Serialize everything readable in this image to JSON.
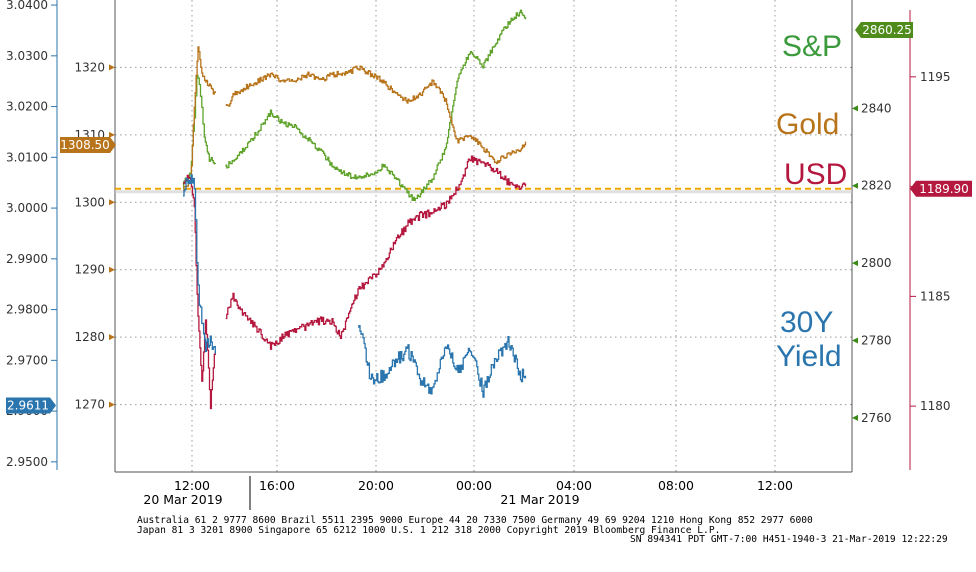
{
  "chart_data": {
    "type": "line",
    "x_ticks": [
      "12:00",
      "16:00",
      "20:00",
      "00:00",
      "04:00",
      "08:00",
      "12:00"
    ],
    "date_labels": [
      "20 Mar 2019",
      "21 Mar 2019"
    ],
    "axes": {
      "yield": {
        "ticks": [
          "3.0400",
          "3.0300",
          "3.0200",
          "3.0100",
          "3.0000",
          "2.9900",
          "2.9800",
          "2.9700",
          "2.9600",
          "2.9500"
        ],
        "ylim": [
          2.948,
          3.041
        ],
        "color": "#2a75ad"
      },
      "gold": {
        "ticks": [
          "1320",
          "1310",
          "1300",
          "1290",
          "1280",
          "1270"
        ],
        "ylim": [
          1260,
          1330
        ],
        "color": "#b8741a"
      },
      "spx": {
        "ticks": [
          "2840",
          "2820",
          "2800",
          "2780",
          "2760"
        ],
        "ylim": [
          2746,
          2868
        ],
        "color": "#3b8a17"
      },
      "usd": {
        "ticks": [
          "1195",
          "1190",
          "1185",
          "1180"
        ],
        "ylim": [
          1177,
          1198.5
        ],
        "color": "#b5183f"
      }
    },
    "flags": {
      "gold": "1308.50",
      "yield": "2.9611",
      "spx": "2860.25",
      "usd": "1189.90"
    },
    "series": [
      {
        "name": "S&P",
        "axis": "spx",
        "color": "#5fa32a",
        "points": [
          [
            0,
            2820
          ],
          [
            0.05,
            2821
          ],
          [
            0.3,
            2823
          ],
          [
            0.45,
            2838
          ],
          [
            0.55,
            2849
          ],
          [
            0.65,
            2846
          ],
          [
            0.75,
            2840
          ],
          [
            0.85,
            2832
          ],
          [
            1.05,
            2827
          ],
          [
            1.25,
            2826
          ],
          [
            1.5,
            2826
          ],
          [
            1.7,
            2825
          ],
          [
            1.75,
            2825
          ],
          [
            2.1,
            2827
          ],
          [
            2.5,
            2830
          ],
          [
            3.0,
            2834
          ],
          [
            3.5,
            2839
          ],
          [
            4.0,
            2836
          ],
          [
            4.5,
            2835
          ],
          [
            5.0,
            2832
          ],
          [
            5.5,
            2829
          ],
          [
            6.0,
            2825
          ],
          [
            6.5,
            2823
          ],
          [
            7.0,
            2822
          ],
          [
            7.5,
            2823
          ],
          [
            8.0,
            2825
          ],
          [
            8.5,
            2822
          ],
          [
            9.0,
            2818
          ],
          [
            9.25,
            2816
          ],
          [
            9.5,
            2818
          ],
          [
            10.0,
            2822
          ],
          [
            10.5,
            2830
          ],
          [
            11.0,
            2848
          ],
          [
            11.5,
            2855
          ],
          [
            12.0,
            2851
          ],
          [
            12.5,
            2857
          ],
          [
            13.0,
            2862
          ],
          [
            13.5,
            2865
          ],
          [
            13.7,
            2863
          ]
        ]
      },
      {
        "name": "Gold",
        "axis": "gold",
        "color": "#b8741a",
        "points": [
          [
            0,
            1302
          ],
          [
            0.3,
            1303
          ],
          [
            0.45,
            1314
          ],
          [
            0.6,
            1323
          ],
          [
            0.75,
            1319
          ],
          [
            0.9,
            1318
          ],
          [
            1.1,
            1317
          ],
          [
            1.25,
            1316
          ],
          [
            1.75,
            1314
          ],
          [
            2.0,
            1316
          ],
          [
            2.5,
            1317
          ],
          [
            3.0,
            1318
          ],
          [
            3.5,
            1319
          ],
          [
            4.0,
            1318
          ],
          [
            4.5,
            1318
          ],
          [
            5.0,
            1319
          ],
          [
            5.5,
            1318
          ],
          [
            6.0,
            1319
          ],
          [
            6.5,
            1319
          ],
          [
            7.0,
            1320
          ],
          [
            7.5,
            1319
          ],
          [
            8.0,
            1318
          ],
          [
            8.5,
            1316
          ],
          [
            9.0,
            1315
          ],
          [
            9.5,
            1316
          ],
          [
            10.0,
            1318
          ],
          [
            10.5,
            1315
          ],
          [
            10.8,
            1311
          ],
          [
            11.0,
            1309
          ],
          [
            11.5,
            1310
          ],
          [
            12.0,
            1308
          ],
          [
            12.5,
            1306
          ],
          [
            13.0,
            1307
          ],
          [
            13.5,
            1308
          ],
          [
            13.7,
            1309
          ]
        ]
      },
      {
        "name": "USD",
        "axis": "usd",
        "color": "#b5183f",
        "points": [
          [
            0,
            1190.3
          ],
          [
            0.3,
            1190.4
          ],
          [
            0.45,
            1189.0
          ],
          [
            0.6,
            1184.0
          ],
          [
            0.75,
            1181.0
          ],
          [
            0.9,
            1184.0
          ],
          [
            1.1,
            1180.0
          ],
          [
            1.25,
            1182.5
          ],
          [
            2.0,
            1185.0
          ],
          [
            2.5,
            1184.0
          ],
          [
            3.0,
            1183.5
          ],
          [
            3.5,
            1182.7
          ],
          [
            4.0,
            1183.2
          ],
          [
            4.5,
            1183.4
          ],
          [
            5.0,
            1183.7
          ],
          [
            5.5,
            1183.9
          ],
          [
            6.0,
            1183.8
          ],
          [
            6.3,
            1183.2
          ],
          [
            6.5,
            1183.7
          ],
          [
            7.0,
            1185.3
          ],
          [
            7.5,
            1185.8
          ],
          [
            8.0,
            1186.4
          ],
          [
            8.5,
            1187.5
          ],
          [
            9.0,
            1188.3
          ],
          [
            9.5,
            1188.7
          ],
          [
            10.0,
            1188.8
          ],
          [
            10.5,
            1189.2
          ],
          [
            11.0,
            1190.0
          ],
          [
            11.5,
            1191.3
          ],
          [
            12.0,
            1191.0
          ],
          [
            12.5,
            1190.8
          ],
          [
            13.0,
            1190.2
          ],
          [
            13.5,
            1190.0
          ],
          [
            13.7,
            1190.0
          ]
        ]
      },
      {
        "name": "30Y Yield",
        "axis": "yield",
        "color": "#2a75ad",
        "points": [
          [
            0,
            3.003
          ],
          [
            0.2,
            3.006
          ],
          [
            0.45,
            3.005
          ],
          [
            0.55,
            2.99
          ],
          [
            0.65,
            2.982
          ],
          [
            0.75,
            2.978
          ],
          [
            0.9,
            2.973
          ],
          [
            1.05,
            2.974
          ],
          [
            1.25,
            2.972
          ],
          [
            7.0,
            2.977
          ],
          [
            7.2,
            2.974
          ],
          [
            7.5,
            2.966
          ],
          [
            8.0,
            2.967
          ],
          [
            8.5,
            2.97
          ],
          [
            9.0,
            2.972
          ],
          [
            9.5,
            2.966
          ],
          [
            10.0,
            2.964
          ],
          [
            10.5,
            2.973
          ],
          [
            11.0,
            2.968
          ],
          [
            11.5,
            2.972
          ],
          [
            12.0,
            2.964
          ],
          [
            12.5,
            2.97
          ],
          [
            13.0,
            2.974
          ],
          [
            13.5,
            2.967
          ],
          [
            13.7,
            2.967
          ]
        ]
      }
    ],
    "reference_line": {
      "value": 1302,
      "axis": "gold",
      "color": "#f0a500"
    },
    "grid": true
  },
  "labels": {
    "spx": "S&P",
    "gold": "Gold",
    "usd": "USD",
    "yield_line1": "30Y",
    "yield_line2": "Yield"
  },
  "footer": {
    "line1": "Australia 61 2 9777 8600 Brazil 5511 2395 9000 Europe 44 20 7330 7500 Germany 49 69 9204 1210 Hong Kong 852 2977 6000",
    "line2": "Japan 81 3 3201 8900       Singapore 65 6212 1000      U.S. 1 212 318 2000          Copyright 2019 Bloomberg Finance L.P.",
    "line3": "SN 894341 PDT  GMT-7:00 H451-1940-3 21-Mar-2019 12:22:29"
  }
}
